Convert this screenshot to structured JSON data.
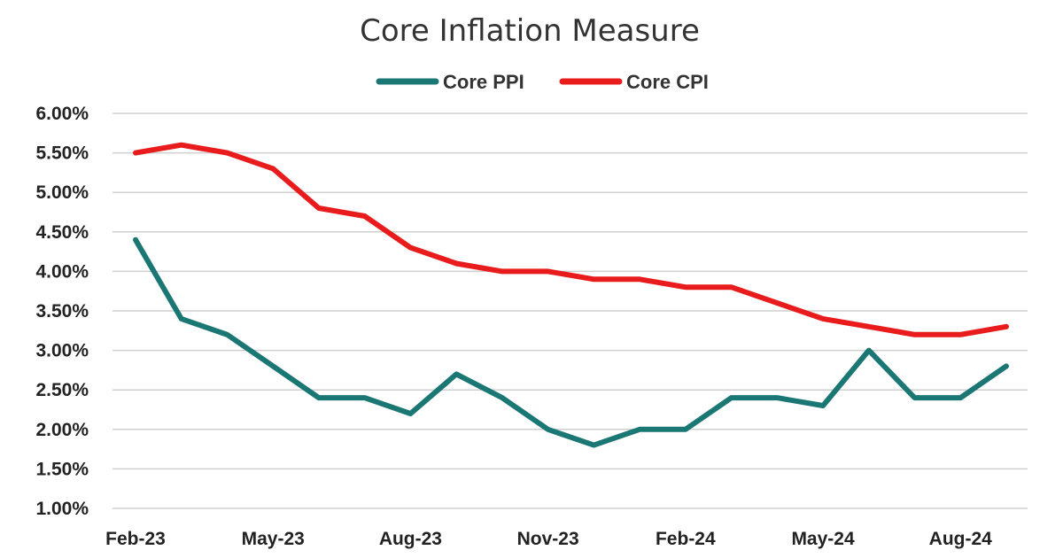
{
  "chart_data": {
    "type": "line",
    "title": "Core Inflation Measure",
    "xlabel": "",
    "ylabel": "",
    "ylim": [
      1.0,
      6.0
    ],
    "yticks": [
      "1.00%",
      "1.50%",
      "2.00%",
      "2.50%",
      "3.00%",
      "3.50%",
      "4.00%",
      "4.50%",
      "5.00%",
      "5.50%",
      "6.00%"
    ],
    "x": [
      "Feb-23",
      "Mar-23",
      "Apr-23",
      "May-23",
      "Jun-23",
      "Jul-23",
      "Aug-23",
      "Sep-23",
      "Oct-23",
      "Nov-23",
      "Dec-23",
      "Jan-24",
      "Feb-24",
      "Mar-24",
      "Apr-24",
      "May-24",
      "Jun-24",
      "Jul-24",
      "Aug-24",
      "Sep-24"
    ],
    "xtick_labels": [
      "Feb-23",
      "May-23",
      "Aug-23",
      "Nov-23",
      "Feb-24",
      "May-24",
      "Aug-24"
    ],
    "legend_position": "top-center",
    "grid": true,
    "series": [
      {
        "name": "Core PPI",
        "color": "#1b7773",
        "values": [
          4.4,
          3.4,
          3.2,
          2.8,
          2.4,
          2.4,
          2.2,
          2.7,
          2.4,
          2.0,
          1.8,
          2.0,
          2.0,
          2.4,
          2.4,
          2.3,
          3.0,
          2.4,
          2.4,
          2.8
        ]
      },
      {
        "name": "Core CPI",
        "color": "#e81c1c",
        "values": [
          5.5,
          5.6,
          5.5,
          5.3,
          4.8,
          4.7,
          4.3,
          4.1,
          4.0,
          4.0,
          3.9,
          3.9,
          3.8,
          3.8,
          3.6,
          3.4,
          3.3,
          3.2,
          3.2,
          3.3
        ]
      }
    ]
  }
}
